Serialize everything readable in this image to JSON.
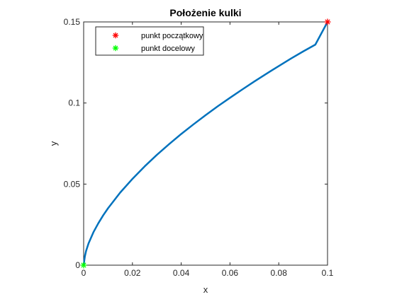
{
  "chart_data": {
    "type": "line",
    "title": "Położenie kulki",
    "xlabel": "x",
    "ylabel": "y",
    "xlim": [
      0,
      0.1
    ],
    "ylim": [
      0,
      0.15
    ],
    "x_ticks": [
      "0",
      "0.02",
      "0.04",
      "0.06",
      "0.08",
      "0.1"
    ],
    "y_ticks": [
      "0",
      "0.05",
      "0.1",
      "0.15"
    ],
    "grid": false,
    "legend_position": "top-left",
    "series": [
      {
        "name": "",
        "color": "#0072BD",
        "x": [
          0,
          0.0005,
          0.001,
          0.002,
          0.004,
          0.006,
          0.008,
          0.01,
          0.015,
          0.02,
          0.025,
          0.03,
          0.035,
          0.04,
          0.045,
          0.05,
          0.055,
          0.06,
          0.065,
          0.07,
          0.075,
          0.08,
          0.085,
          0.09,
          0.095,
          0.1
        ],
        "y": [
          0,
          0.0054,
          0.0088,
          0.0134,
          0.0203,
          0.0258,
          0.0307,
          0.0351,
          0.0448,
          0.0532,
          0.0609,
          0.068,
          0.0746,
          0.0809,
          0.0868,
          0.0925,
          0.098,
          0.1032,
          0.1083,
          0.1133,
          0.1181,
          0.1228,
          0.1274,
          0.1318,
          0.136,
          0.15
        ]
      }
    ],
    "markers": [
      {
        "name": "punkt początkowy",
        "x": 0.1,
        "y": 0.15,
        "color": "#FF0000",
        "symbol": "*"
      },
      {
        "name": "punkt docelowy",
        "x": 0,
        "y": 0,
        "color": "#00FF00",
        "symbol": "*"
      }
    ]
  }
}
